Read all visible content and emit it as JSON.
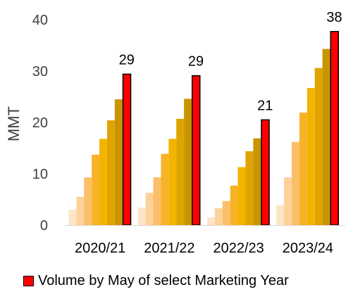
{
  "chart_data": {
    "type": "bar",
    "ylabel": "MMT",
    "ylim": [
      0,
      40
    ],
    "yticks": [
      0,
      10,
      20,
      30,
      40
    ],
    "categories": [
      "2020/21",
      "2021/22",
      "2022/23",
      "2023/24"
    ],
    "cumulative_bars": [
      [
        3.0,
        5.5,
        9.3,
        13.7,
        16.8,
        20.4,
        24.5
      ],
      [
        3.4,
        6.3,
        9.3,
        13.9,
        16.8,
        20.7,
        24.6
      ],
      [
        1.5,
        3.3,
        4.7,
        7.7,
        11.3,
        14.4,
        16.9
      ],
      [
        3.9,
        9.3,
        16.2,
        21.9,
        26.7,
        30.6,
        34.3
      ]
    ],
    "bar_colors": [
      "#fde5c6",
      "#fcd29a",
      "#fbbe69",
      "#f8b227",
      "#f3b400",
      "#e0a400",
      "#c89500"
    ],
    "highlight_series": {
      "name": "Volume by May of select Marketing Year",
      "values": [
        29.4,
        29.1,
        20.5,
        37.7
      ],
      "labels": [
        "29",
        "29",
        "21",
        "38"
      ],
      "color": "#ff0000",
      "stroke": "#000000"
    },
    "legend": "bottom"
  }
}
